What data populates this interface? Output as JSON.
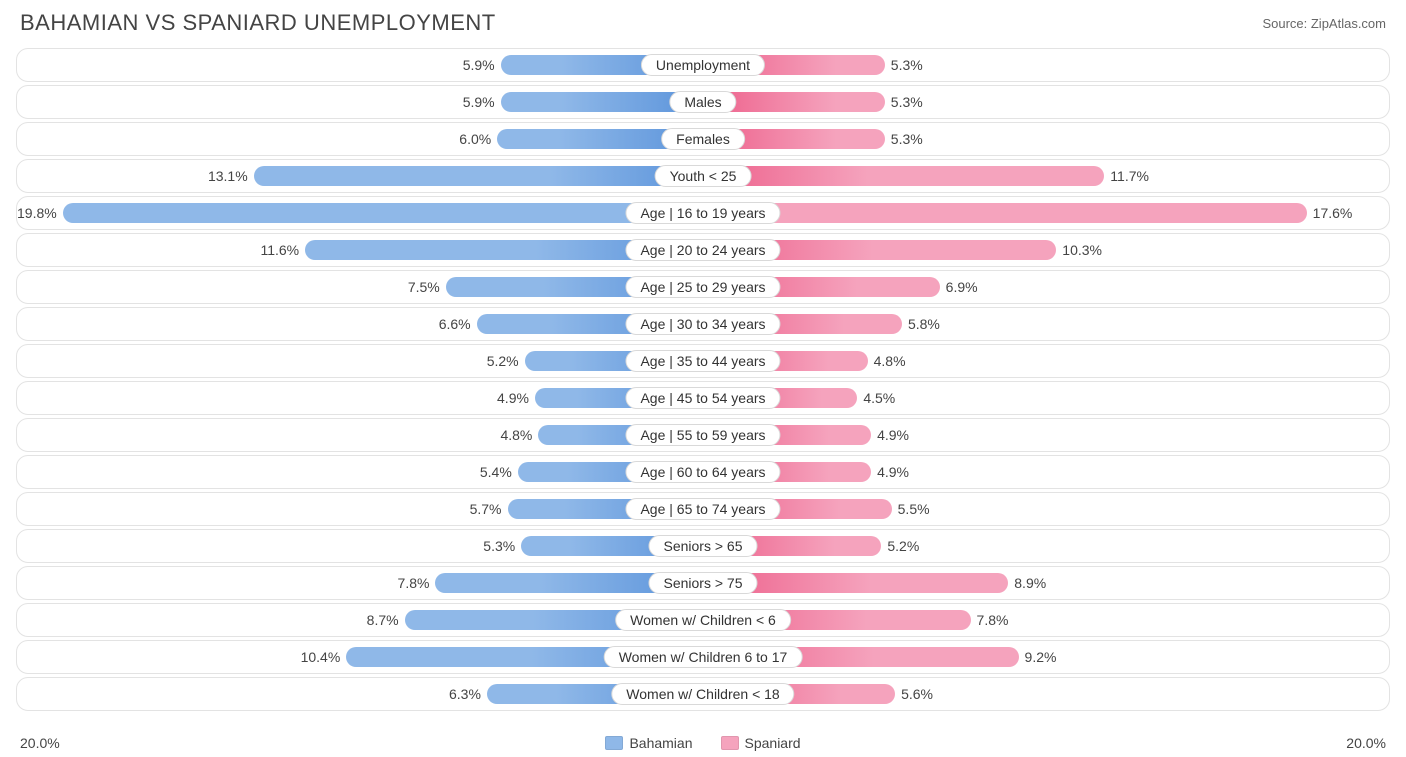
{
  "title": "BAHAMIAN VS SPANIARD UNEMPLOYMENT",
  "source_label": "Source: ",
  "source_name": "ZipAtlas.com",
  "chart": {
    "type": "diverging-bar",
    "max_percent": 20.0,
    "axis_left_label": "20.0%",
    "axis_right_label": "20.0%",
    "row_border_color": "#e3e3e3",
    "background_color": "#ffffff",
    "text_color": "#444444",
    "label_pill_border": "#d9d9d9",
    "left": {
      "name": "Bahamian",
      "base_color": "#8fb8e8",
      "dark_color": "#5a93db"
    },
    "right": {
      "name": "Spaniard",
      "base_color": "#f5a3bd",
      "dark_color": "#ed5f8a"
    },
    "rows": [
      {
        "label": "Unemployment",
        "left_val": "5.9%",
        "left_num": 5.9,
        "right_val": "5.3%",
        "right_num": 5.3
      },
      {
        "label": "Males",
        "left_val": "5.9%",
        "left_num": 5.9,
        "right_val": "5.3%",
        "right_num": 5.3
      },
      {
        "label": "Females",
        "left_val": "6.0%",
        "left_num": 6.0,
        "right_val": "5.3%",
        "right_num": 5.3
      },
      {
        "label": "Youth < 25",
        "left_val": "13.1%",
        "left_num": 13.1,
        "right_val": "11.7%",
        "right_num": 11.7
      },
      {
        "label": "Age | 16 to 19 years",
        "left_val": "19.8%",
        "left_num": 19.8,
        "right_val": "17.6%",
        "right_num": 17.6
      },
      {
        "label": "Age | 20 to 24 years",
        "left_val": "11.6%",
        "left_num": 11.6,
        "right_val": "10.3%",
        "right_num": 10.3
      },
      {
        "label": "Age | 25 to 29 years",
        "left_val": "7.5%",
        "left_num": 7.5,
        "right_val": "6.9%",
        "right_num": 6.9
      },
      {
        "label": "Age | 30 to 34 years",
        "left_val": "6.6%",
        "left_num": 6.6,
        "right_val": "5.8%",
        "right_num": 5.8
      },
      {
        "label": "Age | 35 to 44 years",
        "left_val": "5.2%",
        "left_num": 5.2,
        "right_val": "4.8%",
        "right_num": 4.8
      },
      {
        "label": "Age | 45 to 54 years",
        "left_val": "4.9%",
        "left_num": 4.9,
        "right_val": "4.5%",
        "right_num": 4.5
      },
      {
        "label": "Age | 55 to 59 years",
        "left_val": "4.8%",
        "left_num": 4.8,
        "right_val": "4.9%",
        "right_num": 4.9
      },
      {
        "label": "Age | 60 to 64 years",
        "left_val": "5.4%",
        "left_num": 5.4,
        "right_val": "4.9%",
        "right_num": 4.9
      },
      {
        "label": "Age | 65 to 74 years",
        "left_val": "5.7%",
        "left_num": 5.7,
        "right_val": "5.5%",
        "right_num": 5.5
      },
      {
        "label": "Seniors > 65",
        "left_val": "5.3%",
        "left_num": 5.3,
        "right_val": "5.2%",
        "right_num": 5.2
      },
      {
        "label": "Seniors > 75",
        "left_val": "7.8%",
        "left_num": 7.8,
        "right_val": "8.9%",
        "right_num": 8.9
      },
      {
        "label": "Women w/ Children < 6",
        "left_val": "8.7%",
        "left_num": 8.7,
        "right_val": "7.8%",
        "right_num": 7.8
      },
      {
        "label": "Women w/ Children 6 to 17",
        "left_val": "10.4%",
        "left_num": 10.4,
        "right_val": "9.2%",
        "right_num": 9.2
      },
      {
        "label": "Women w/ Children < 18",
        "left_val": "6.3%",
        "left_num": 6.3,
        "right_val": "5.6%",
        "right_num": 5.6
      }
    ]
  }
}
